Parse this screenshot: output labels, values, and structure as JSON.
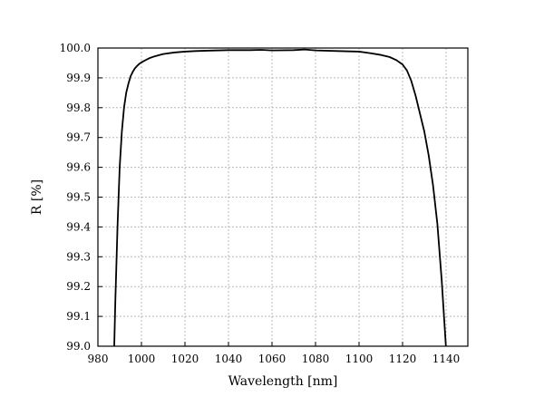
{
  "chart_data": {
    "type": "line",
    "xlabel": "Wavelength [nm]",
    "ylabel": "R [%]",
    "xlim": [
      980,
      1150
    ],
    "ylim": [
      99.0,
      100.0
    ],
    "xticks": [
      980,
      1000,
      1020,
      1040,
      1060,
      1080,
      1100,
      1120,
      1140
    ],
    "yticks": [
      "99.0",
      "99.1",
      "99.2",
      "99.3",
      "99.4",
      "99.5",
      "99.6",
      "99.7",
      "99.8",
      "99.9",
      "100.0"
    ],
    "grid": true,
    "series": [
      {
        "color": "#000000",
        "x": [
          987.5,
          988,
          989,
          990,
          991,
          992,
          993,
          994,
          995,
          996,
          997,
          998,
          999,
          1000,
          1002,
          1004,
          1006,
          1008,
          1010,
          1015,
          1020,
          1025,
          1030,
          1040,
          1050,
          1055,
          1060,
          1070,
          1075,
          1080,
          1090,
          1100,
          1105,
          1110,
          1114,
          1117,
          1120,
          1122,
          1124,
          1126,
          1128,
          1130,
          1132,
          1134,
          1136,
          1138,
          1140,
          1141
        ],
        "y": [
          99.0,
          99.15,
          99.4,
          99.6,
          99.72,
          99.8,
          99.85,
          99.88,
          99.905,
          99.92,
          99.932,
          99.94,
          99.947,
          99.952,
          99.96,
          99.967,
          99.972,
          99.976,
          99.98,
          99.985,
          99.988,
          99.99,
          99.991,
          99.993,
          99.993,
          99.994,
          99.992,
          99.993,
          99.995,
          99.992,
          99.99,
          99.988,
          99.983,
          99.977,
          99.97,
          99.96,
          99.945,
          99.925,
          99.89,
          99.84,
          99.78,
          99.72,
          99.64,
          99.54,
          99.41,
          99.22,
          98.99,
          98.97
        ]
      }
    ]
  }
}
